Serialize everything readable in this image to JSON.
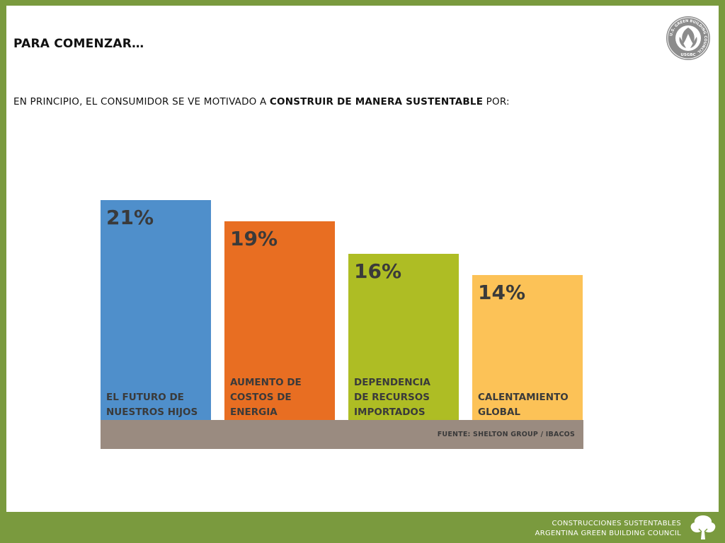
{
  "slide": {
    "title": "PARA COMENZAR…",
    "subtitle_pre": "EN PRINCIPIO, EL CONSUMIDOR SE VE MOTIVADO A ",
    "subtitle_bold": "CONSTRUIR DE MANERA SUSTENTABLE",
    "subtitle_post": " POR:"
  },
  "logo": {
    "icon": "usgbc-seal-icon",
    "ring_text": "U.S. GREEN BUILDING COUNCIL",
    "acronym": "USGBC"
  },
  "chart_data": {
    "type": "bar",
    "categories": [
      "EL FUTURO DE\nNUESTROS HIJOS",
      "AUMENTO DE\nCOSTOS DE\nENERGIA",
      "DEPENDENCIA\nDE RECURSOS\nIMPORTADOS",
      "CALENTAMIENTO\nGLOBAL"
    ],
    "values": [
      21,
      19,
      16,
      14
    ],
    "value_labels": [
      "21%",
      "19%",
      "16%",
      "14%"
    ],
    "colors": [
      "#4f8fcb",
      "#e86e22",
      "#aebd24",
      "#fcc257"
    ],
    "source": "FUENTE: SHELTON GROUP / IBACOS",
    "grid": false
  },
  "footer": {
    "line1": "CONSTRUCCIONES SUSTENTABLES",
    "line2": "ARGENTINA GREEN BUILDING COUNCIL",
    "icon": "tree-icon"
  },
  "colors": {
    "frame": "#7a9a3e",
    "base": "#9a8b80"
  }
}
